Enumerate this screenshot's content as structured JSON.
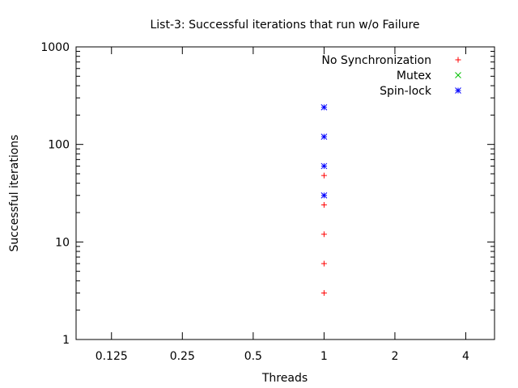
{
  "chart_data": {
    "type": "scatter",
    "title": "List-3: Successful iterations that run w/o Failure",
    "xlabel": "Threads",
    "ylabel": "Successful iterations",
    "x_scale": "log2",
    "y_scale": "log10",
    "xlim": [
      0.0884,
      5.3
    ],
    "ylim": [
      1,
      1000
    ],
    "x_ticks": [
      "0.125",
      "0.25",
      "0.5",
      "1",
      "2",
      "4"
    ],
    "y_ticks": [
      "1",
      "10",
      "100",
      "1000"
    ],
    "legend_position": "top-right",
    "grid": false,
    "series": [
      {
        "name": "No Synchronization",
        "marker": "+",
        "color": "#ff0000",
        "points": [
          [
            1,
            3
          ],
          [
            1,
            6
          ],
          [
            1,
            12
          ],
          [
            1,
            24
          ],
          [
            1,
            48
          ]
        ]
      },
      {
        "name": "Mutex",
        "marker": "x",
        "color": "#00c000",
        "points": []
      },
      {
        "name": "Spin-lock",
        "marker": "*",
        "color": "#0000ff",
        "points": [
          [
            1,
            30
          ],
          [
            1,
            60
          ],
          [
            1,
            120
          ],
          [
            1,
            240
          ]
        ]
      }
    ]
  }
}
